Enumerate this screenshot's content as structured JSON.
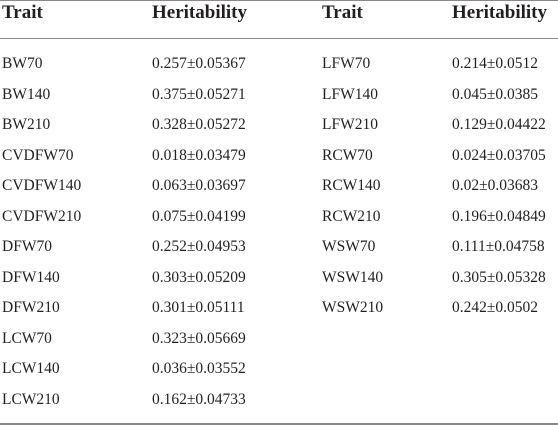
{
  "headers": {
    "trait_left": "Trait",
    "heritability_left": "Heritability",
    "trait_right": "Trait",
    "heritability_right": "Heritability"
  },
  "left_rows": [
    {
      "trait": "BW70",
      "heritability": "0.257±0.05367"
    },
    {
      "trait": "BW140",
      "heritability": "0.375±0.05271"
    },
    {
      "trait": "BW210",
      "heritability": "0.328±0.05272"
    },
    {
      "trait": "CVDFW70",
      "heritability": "0.018±0.03479"
    },
    {
      "trait": "CVDFW140",
      "heritability": "0.063±0.03697"
    },
    {
      "trait": "CVDFW210",
      "heritability": "0.075±0.04199"
    },
    {
      "trait": "DFW70",
      "heritability": "0.252±0.04953"
    },
    {
      "trait": "DFW140",
      "heritability": "0.303±0.05209"
    },
    {
      "trait": "DFW210",
      "heritability": "0.301±0.05111"
    },
    {
      "trait": "LCW70",
      "heritability": "0.323±0.05669"
    },
    {
      "trait": "LCW140",
      "heritability": "0.036±0.03552"
    },
    {
      "trait": "LCW210",
      "heritability": "0.162±0.04733"
    }
  ],
  "right_rows": [
    {
      "trait": "LFW70",
      "heritability": "0.214±0.0512"
    },
    {
      "trait": "LFW140",
      "heritability": "0.045±0.0385"
    },
    {
      "trait": "LFW210",
      "heritability": "0.129±0.04422"
    },
    {
      "trait": "RCW70",
      "heritability": "0.024±0.03705"
    },
    {
      "trait": "RCW140",
      "heritability": "0.02±0.03683"
    },
    {
      "trait": "RCW210",
      "heritability": "0.196±0.04849"
    },
    {
      "trait": "WSW70",
      "heritability": "0.111±0.04758"
    },
    {
      "trait": "WSW140",
      "heritability": "0.305±0.05328"
    },
    {
      "trait": "WSW210",
      "heritability": "0.242±0.0502"
    }
  ]
}
